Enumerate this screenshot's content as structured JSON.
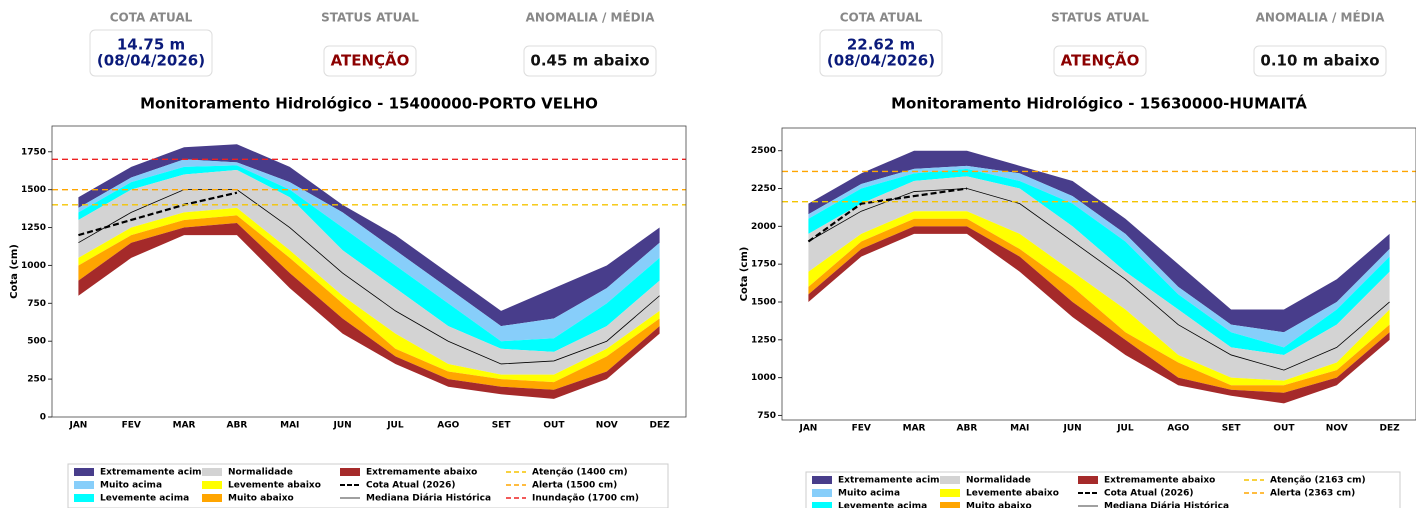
{
  "panels": [
    {
      "cards": [
        {
          "label": "COTA ATUAL",
          "lines": [
            "14.75 m",
            "(08/04/2026)"
          ]
        },
        {
          "label": "STATUS ATUAL",
          "lines": [
            "ATENÇÃO"
          ]
        },
        {
          "label": "ANOMALIA / MÉDIA",
          "lines": [
            "0.45 m abaixo"
          ]
        }
      ]
    },
    {
      "cards": [
        {
          "label": "COTA ATUAL",
          "lines": [
            "22.62 m",
            "(08/04/2026)"
          ]
        },
        {
          "label": "STATUS ATUAL",
          "lines": [
            "ATENÇÃO"
          ]
        },
        {
          "label": "ANOMALIA / MÉDIA",
          "lines": [
            "0.10 m abaixo"
          ]
        }
      ]
    }
  ],
  "chart_data": [
    {
      "type": "band",
      "title": "Monitoramento Hidrológico - 15400000-PORTO VELHO",
      "y_label": "Cota (cm)",
      "categories": [
        "JAN",
        "FEV",
        "MAR",
        "ABR",
        "MAI",
        "JUN",
        "JUL",
        "AGO",
        "SET",
        "OUT",
        "NOV",
        "DEZ"
      ],
      "ylim": [
        0,
        1920
      ],
      "yticks": [
        0,
        250,
        500,
        750,
        1000,
        1250,
        1500,
        1750
      ],
      "series": [
        {
          "name": "Extremamente acima",
          "color": "#483d8b",
          "lower": [
            1380,
            1580,
            1700,
            1680,
            1550,
            1350,
            1100,
            850,
            600,
            650,
            850,
            1150
          ],
          "upper": [
            1450,
            1650,
            1780,
            1800,
            1650,
            1400,
            1200,
            950,
            700,
            850,
            1000,
            1250
          ]
        },
        {
          "name": "Muito acima",
          "color": "#87cefa",
          "lower": [
            1350,
            1550,
            1650,
            1660,
            1500,
            1250,
            1000,
            750,
            500,
            520,
            750,
            1050
          ],
          "upper": [
            1380,
            1580,
            1700,
            1680,
            1550,
            1350,
            1100,
            850,
            600,
            650,
            850,
            1150
          ]
        },
        {
          "name": "Levemente acima",
          "color": "#00ffff",
          "lower": [
            1300,
            1500,
            1600,
            1630,
            1450,
            1100,
            850,
            600,
            450,
            430,
            600,
            900
          ],
          "upper": [
            1350,
            1550,
            1650,
            1660,
            1500,
            1250,
            1000,
            750,
            500,
            520,
            750,
            1050
          ]
        },
        {
          "name": "Normalidade",
          "color": "#d3d3d3",
          "lower": [
            1050,
            1250,
            1350,
            1380,
            1100,
            800,
            550,
            350,
            280,
            280,
            450,
            700
          ],
          "upper": [
            1300,
            1500,
            1600,
            1630,
            1450,
            1100,
            850,
            600,
            450,
            430,
            600,
            900
          ]
        },
        {
          "name": "Levemente abaixo",
          "color": "#ffff00",
          "lower": [
            1000,
            1200,
            1300,
            1330,
            1050,
            750,
            450,
            300,
            250,
            230,
            400,
            650
          ],
          "upper": [
            1050,
            1250,
            1350,
            1380,
            1100,
            800,
            550,
            350,
            280,
            280,
            450,
            700
          ]
        },
        {
          "name": "Muito abaixo",
          "color": "#ffa500",
          "lower": [
            900,
            1150,
            1250,
            1280,
            950,
            650,
            400,
            250,
            200,
            180,
            300,
            600
          ],
          "upper": [
            1000,
            1200,
            1300,
            1330,
            1050,
            750,
            450,
            300,
            250,
            230,
            400,
            650
          ]
        },
        {
          "name": "Extremamente abaixo",
          "color": "#a52a2a",
          "lower": [
            800,
            1050,
            1200,
            1200,
            850,
            550,
            350,
            200,
            150,
            120,
            250,
            550
          ],
          "upper": [
            900,
            1150,
            1250,
            1280,
            950,
            650,
            400,
            250,
            200,
            180,
            300,
            600
          ]
        },
        {
          "name": "Cota Atual (2026)",
          "type": "line",
          "dash": true,
          "color": "#000000",
          "values": [
            1200,
            1300,
            1400,
            1480,
            null,
            null,
            null,
            null,
            null,
            null,
            null,
            null
          ]
        },
        {
          "name": "Mediana Diária Histórica",
          "type": "line",
          "color": "#000000",
          "values": [
            1150,
            1350,
            1500,
            1500,
            1250,
            950,
            700,
            500,
            350,
            370,
            500,
            800
          ]
        }
      ],
      "thresholds": [
        {
          "name": "Atenção (1400 cm)",
          "value": 1400,
          "color": "#f5c400"
        },
        {
          "name": "Alerta (1500 cm)",
          "value": 1500,
          "color": "#ffa500"
        },
        {
          "name": "Inundação (1700 cm)",
          "value": 1700,
          "color": "#ee2222"
        }
      ]
    },
    {
      "type": "band",
      "title": "Monitoramento Hidrológico - 15630000-HUMAITÁ",
      "y_label": "Cota (cm)",
      "categories": [
        "JAN",
        "FEV",
        "MAR",
        "ABR",
        "MAI",
        "JUN",
        "JUL",
        "AGO",
        "SET",
        "OUT",
        "NOV",
        "DEZ"
      ],
      "ylim": [
        720,
        2650
      ],
      "yticks": [
        750,
        1000,
        1250,
        1500,
        1750,
        2000,
        2250,
        2500
      ],
      "series": [
        {
          "name": "Extremamente acima",
          "color": "#483d8b",
          "lower": [
            2080,
            2280,
            2380,
            2400,
            2350,
            2200,
            1950,
            1600,
            1350,
            1300,
            1500,
            1850
          ],
          "upper": [
            2150,
            2350,
            2500,
            2500,
            2400,
            2300,
            2050,
            1750,
            1450,
            1450,
            1650,
            1950
          ]
        },
        {
          "name": "Muito acima",
          "color": "#87cefa",
          "lower": [
            2050,
            2250,
            2350,
            2380,
            2300,
            2150,
            1900,
            1550,
            1300,
            1200,
            1450,
            1800
          ],
          "upper": [
            2080,
            2280,
            2380,
            2400,
            2350,
            2200,
            1950,
            1600,
            1350,
            1300,
            1500,
            1850
          ]
        },
        {
          "name": "Levemente acima",
          "color": "#00ffff",
          "lower": [
            1950,
            2150,
            2300,
            2330,
            2250,
            2000,
            1700,
            1450,
            1200,
            1150,
            1350,
            1700
          ],
          "upper": [
            2050,
            2250,
            2350,
            2380,
            2300,
            2150,
            1900,
            1550,
            1300,
            1200,
            1450,
            1800
          ]
        },
        {
          "name": "Normalidade",
          "color": "#d3d3d3",
          "lower": [
            1700,
            1950,
            2100,
            2100,
            1950,
            1700,
            1450,
            1150,
            1000,
            980,
            1100,
            1450
          ],
          "upper": [
            1950,
            2150,
            2300,
            2330,
            2250,
            2000,
            1700,
            1450,
            1200,
            1150,
            1350,
            1700
          ]
        },
        {
          "name": "Levemente abaixo",
          "color": "#ffff00",
          "lower": [
            1600,
            1900,
            2050,
            2050,
            1850,
            1600,
            1300,
            1100,
            950,
            950,
            1050,
            1350
          ],
          "upper": [
            1700,
            1950,
            2100,
            2100,
            1950,
            1700,
            1450,
            1150,
            1000,
            980,
            1100,
            1450
          ]
        },
        {
          "name": "Muito abaixo",
          "color": "#ffa500",
          "lower": [
            1550,
            1850,
            2000,
            2000,
            1800,
            1500,
            1250,
            1000,
            920,
            900,
            1000,
            1300
          ],
          "upper": [
            1600,
            1900,
            2050,
            2050,
            1850,
            1600,
            1300,
            1100,
            950,
            950,
            1050,
            1350
          ]
        },
        {
          "name": "Extremamente abaixo",
          "color": "#a52a2a",
          "lower": [
            1500,
            1800,
            1950,
            1950,
            1700,
            1400,
            1150,
            950,
            880,
            830,
            950,
            1250
          ],
          "upper": [
            1550,
            1850,
            2000,
            2000,
            1800,
            1500,
            1250,
            1000,
            920,
            900,
            1000,
            1300
          ]
        },
        {
          "name": "Cota Atual (2026)",
          "type": "line",
          "dash": true,
          "color": "#000000",
          "values": [
            1900,
            2150,
            2200,
            2250,
            null,
            null,
            null,
            null,
            null,
            null,
            null,
            null
          ]
        },
        {
          "name": "Mediana Diária Histórica",
          "type": "line",
          "color": "#000000",
          "values": [
            1900,
            2100,
            2230,
            2250,
            2150,
            1900,
            1650,
            1350,
            1150,
            1050,
            1200,
            1500
          ]
        }
      ],
      "thresholds": [
        {
          "name": "Atenção (2163 cm)",
          "value": 2163,
          "color": "#f5c400"
        },
        {
          "name": "Alerta (2363 cm)",
          "value": 2363,
          "color": "#ffa500"
        }
      ]
    }
  ]
}
